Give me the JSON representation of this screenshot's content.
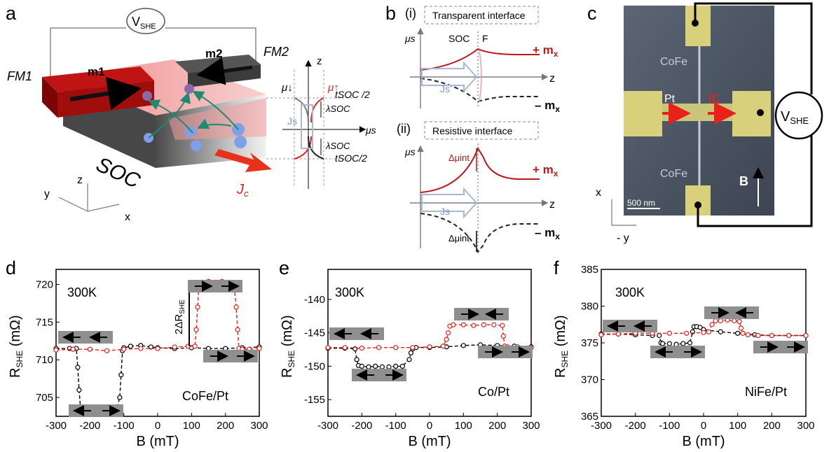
{
  "panels": {
    "a": {
      "label": "a",
      "vshe": "V",
      "vshe_sub": "SHE",
      "fm1": "FM1",
      "fm2": "FM2",
      "m1": "m1",
      "m2": "m2",
      "soc": "SOC",
      "jc": "J",
      "jc_sub": "c",
      "axes": {
        "z": "z",
        "y": "y",
        "x": "x"
      },
      "inset": {
        "z": "z",
        "mu_down": "μ↓",
        "mu_up": "μ↑",
        "tsoc_top": "tSOC /2",
        "tsoc_bottom": "tSOC/2",
        "lambda_top": "λSOC",
        "lambda_bottom": "λSOC",
        "mus": "μs",
        "js": "Js"
      }
    },
    "b": {
      "label": "b",
      "i": {
        "tag": "(i)",
        "title": "Transparent interface",
        "mus": "μs",
        "soc": "SOC",
        "f": "F",
        "js": "Js",
        "z": "z",
        "plus": "+ m",
        "minus": "– m",
        "sub": "x"
      },
      "ii": {
        "tag": "(ii)",
        "title": "Resistive interface",
        "mus": "μs",
        "dmu_top": "Δμint",
        "dmu_bottom": "Δμint",
        "js": "Js",
        "z": "z",
        "plus": "+ m",
        "minus": "– m",
        "sub": "x"
      }
    },
    "c": {
      "label": "c",
      "cofe_top": "CoFe",
      "cofe_bottom": "CoFe",
      "pt": "Pt",
      "ic": "Ic",
      "scale": "500 nm",
      "b": "B",
      "vshe": "V",
      "vshe_sub": "SHE",
      "x": "x",
      "y": "- y"
    },
    "d": {
      "label": "d",
      "temp": "300K",
      "material": "CoFe/Pt",
      "delta": "2ΔR",
      "delta_sub": "SHE"
    },
    "e": {
      "label": "e",
      "temp": "300K",
      "material": "Co/Pt"
    },
    "f": {
      "label": "f",
      "temp": "300K",
      "material": "NiFe/Pt"
    }
  },
  "colors": {
    "red": "#e8211b",
    "black": "#000000",
    "gray": "#888888"
  },
  "chart_data": [
    {
      "type": "scatter",
      "panel": "d",
      "xlabel": "B (mT)",
      "ylabel": "R",
      "ylabel_sub": "SHE",
      "ylabel_unit": " (mΩ)",
      "xlim": [
        -300,
        300
      ],
      "ylim": [
        702.5,
        722
      ],
      "xticks": [
        -300,
        -200,
        -100,
        0,
        100,
        200,
        300
      ],
      "yticks": [
        705,
        710,
        715,
        720
      ],
      "series": [
        {
          "color": "#000000",
          "x": [
            -300,
            -260,
            -240,
            -236,
            -232,
            -228,
            -220,
            -200,
            -180,
            -160,
            -140,
            -120,
            -112,
            -108,
            -104,
            -100,
            -80,
            -50,
            -20,
            0,
            50,
            100,
            150,
            200,
            250,
            300
          ],
          "y": [
            711.5,
            711.5,
            711.5,
            709,
            706,
            703.7,
            703.5,
            703.6,
            703.4,
            703.5,
            703.3,
            703.6,
            705,
            708,
            711.2,
            711.6,
            711.8,
            711.9,
            711.7,
            711.6,
            711.5,
            711.6,
            711.5,
            711.5,
            711.6,
            711.7
          ]
        },
        {
          "color": "#e8211b",
          "x": [
            -300,
            -250,
            -200,
            -150,
            -100,
            -50,
            0,
            50,
            90,
            110,
            114,
            118,
            122,
            130,
            150,
            170,
            190,
            210,
            225,
            232,
            236,
            240,
            250,
            270,
            300
          ],
          "y": [
            711.3,
            711.4,
            711.4,
            711.2,
            711.4,
            711.5,
            711.5,
            711.7,
            711.8,
            711.8,
            714,
            717,
            720,
            720.3,
            720.4,
            720.3,
            720.4,
            720.3,
            720.2,
            717,
            714,
            711.5,
            711.4,
            711.4,
            711.5
          ]
        }
      ]
    },
    {
      "type": "scatter",
      "panel": "e",
      "xlabel": "B (mT)",
      "ylabel": "R",
      "ylabel_sub": "SHE",
      "ylabel_unit": " (mΩ)",
      "xlim": [
        -300,
        300
      ],
      "ylim": [
        -157.5,
        -135.5
      ],
      "xticks": [
        -300,
        -200,
        -100,
        0,
        100,
        200,
        300
      ],
      "yticks": [
        -155,
        -150,
        -145,
        -140
      ],
      "series": [
        {
          "color": "#000000",
          "x": [
            -300,
            -250,
            -220,
            -215,
            -210,
            -200,
            -180,
            -160,
            -140,
            -120,
            -100,
            -80,
            -60,
            -55,
            -50,
            -40,
            0,
            50,
            100,
            150,
            200,
            250,
            300
          ],
          "y": [
            -147.3,
            -147.3,
            -147.4,
            -149,
            -149.9,
            -150,
            -150.1,
            -150,
            -150.1,
            -150.1,
            -150,
            -150,
            -149,
            -148,
            -147.4,
            -147.2,
            -147.2,
            -147.1,
            -146.9,
            -146.8,
            -146.9,
            -147,
            -147.1
          ]
        },
        {
          "color": "#e8211b",
          "x": [
            -300,
            -250,
            -200,
            -150,
            -100,
            -50,
            0,
            40,
            50,
            55,
            60,
            70,
            100,
            130,
            160,
            190,
            215,
            218,
            222,
            230,
            260,
            300
          ],
          "y": [
            -147.2,
            -147.2,
            -147.3,
            -147.2,
            -147.2,
            -147.2,
            -147.1,
            -147,
            -146,
            -145,
            -144,
            -143.8,
            -143.8,
            -143.9,
            -143.8,
            -143.8,
            -143.9,
            -145.5,
            -147,
            -147.1,
            -147.1,
            -147.2
          ]
        }
      ]
    },
    {
      "type": "scatter",
      "panel": "f",
      "xlabel": "B (mT)",
      "ylabel": "R",
      "ylabel_sub": "SHE",
      "ylabel_unit": " (mΩ)",
      "xlim": [
        -300,
        300
      ],
      "ylim": [
        365,
        385
      ],
      "xticks": [
        -300,
        -200,
        -100,
        0,
        100,
        200,
        300
      ],
      "yticks": [
        365,
        370,
        375,
        380,
        385
      ],
      "series": [
        {
          "color": "#000000",
          "x": [
            -300,
            -250,
            -200,
            -150,
            -130,
            -125,
            -120,
            -100,
            -80,
            -60,
            -40,
            -32,
            -28,
            -20,
            -10,
            0,
            50,
            100,
            150,
            200,
            250,
            300
          ],
          "y": [
            376.2,
            376.2,
            376.1,
            376.0,
            376,
            375,
            374.9,
            374.9,
            374.8,
            374.9,
            375,
            376.5,
            377.2,
            377.2,
            377.1,
            376.8,
            376.5,
            376.3,
            376.1,
            376,
            376,
            376
          ]
        },
        {
          "color": "#e8211b",
          "x": [
            -300,
            -250,
            -200,
            -150,
            -100,
            -50,
            0,
            15,
            25,
            35,
            50,
            70,
            90,
            105,
            110,
            115,
            130,
            160,
            200,
            250,
            300
          ],
          "y": [
            376.1,
            376.2,
            376.3,
            376.3,
            376.3,
            376.3,
            376.4,
            376.5,
            377.5,
            378,
            378,
            378.1,
            378,
            377.9,
            377,
            376.3,
            376.1,
            376,
            376,
            376,
            376
          ]
        }
      ]
    }
  ]
}
